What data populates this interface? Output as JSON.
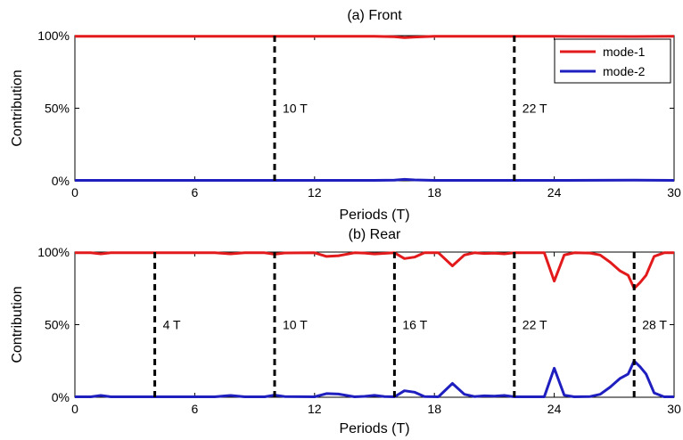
{
  "chart_data": [
    {
      "type": "line",
      "title": "(a) Front",
      "xlabel": "Periods (T)",
      "ylabel": "Contribution",
      "xlim": [
        0,
        30
      ],
      "ylim": [
        0,
        100
      ],
      "xticks": [
        0,
        6,
        12,
        18,
        24,
        30
      ],
      "yticks": [
        0,
        50,
        100
      ],
      "ytick_labels": [
        "0%",
        "50%",
        "100%"
      ],
      "grid": false,
      "legend": {
        "position": "top-right",
        "entries": [
          "mode-1",
          "mode-2"
        ]
      },
      "annotations": [
        {
          "x": 10,
          "label": "10 T"
        },
        {
          "x": 22,
          "label": "22 T"
        }
      ],
      "series": [
        {
          "name": "mode-1",
          "color": "#e31a1c",
          "points": [
            [
              0,
              99.5
            ],
            [
              5,
              99.5
            ],
            [
              10,
              99.5
            ],
            [
              15,
              99.5
            ],
            [
              16,
              99.2
            ],
            [
              16.5,
              98.6
            ],
            [
              17,
              99.0
            ],
            [
              18,
              99.5
            ],
            [
              24,
              99.5
            ],
            [
              28,
              99.4
            ],
            [
              30,
              99.5
            ]
          ]
        },
        {
          "name": "mode-2",
          "color": "#1f1fbf",
          "points": [
            [
              0,
              0.3
            ],
            [
              5,
              0.3
            ],
            [
              10,
              0.3
            ],
            [
              15,
              0.3
            ],
            [
              16,
              0.5
            ],
            [
              16.5,
              1.0
            ],
            [
              17,
              0.6
            ],
            [
              18,
              0.3
            ],
            [
              24,
              0.3
            ],
            [
              28,
              0.5
            ],
            [
              30,
              0.3
            ]
          ]
        }
      ]
    },
    {
      "type": "line",
      "title": "(b) Rear",
      "xlabel": "Periods (T)",
      "ylabel": "Contribution",
      "xlim": [
        0,
        30
      ],
      "ylim": [
        0,
        100
      ],
      "xticks": [
        0,
        6,
        12,
        18,
        24,
        30
      ],
      "yticks": [
        0,
        50,
        100
      ],
      "ytick_labels": [
        "0%",
        "50%",
        "100%"
      ],
      "grid": false,
      "annotations": [
        {
          "x": 4,
          "label": "4 T"
        },
        {
          "x": 10,
          "label": "10 T"
        },
        {
          "x": 16,
          "label": "16 T"
        },
        {
          "x": 22,
          "label": "22 T"
        },
        {
          "x": 28,
          "label": "28 T"
        }
      ],
      "series": [
        {
          "name": "mode-1",
          "color": "#e31a1c",
          "points": [
            [
              0,
              99.5
            ],
            [
              0.8,
              99.5
            ],
            [
              1.3,
              98.8
            ],
            [
              1.8,
              99.5
            ],
            [
              4,
              99.5
            ],
            [
              7,
              99.5
            ],
            [
              7.8,
              98.8
            ],
            [
              8.5,
              99.5
            ],
            [
              9.5,
              99.5
            ],
            [
              10,
              98.5
            ],
            [
              10.5,
              99.4
            ],
            [
              12,
              99.5
            ],
            [
              12.6,
              97
            ],
            [
              13.2,
              97.5
            ],
            [
              14,
              99.5
            ],
            [
              14.5,
              99.3
            ],
            [
              15,
              98.7
            ],
            [
              16,
              99.5
            ],
            [
              16.5,
              95.5
            ],
            [
              17,
              96.5
            ],
            [
              17.5,
              99.5
            ],
            [
              18.2,
              99.5
            ],
            [
              18.9,
              90.5
            ],
            [
              19.5,
              98
            ],
            [
              20,
              99.5
            ],
            [
              20.5,
              99
            ],
            [
              21,
              99.2
            ],
            [
              21.5,
              98.8
            ],
            [
              22,
              99.5
            ],
            [
              23.5,
              99.5
            ],
            [
              24,
              80
            ],
            [
              24.5,
              98
            ],
            [
              25,
              99.5
            ],
            [
              25.8,
              99.3
            ],
            [
              26.3,
              98
            ],
            [
              26.8,
              93
            ],
            [
              27.3,
              87
            ],
            [
              27.7,
              84
            ],
            [
              28,
              75
            ],
            [
              28.3,
              79
            ],
            [
              28.6,
              84
            ],
            [
              29,
              97
            ],
            [
              29.5,
              99.5
            ],
            [
              30,
              99.5
            ]
          ]
        },
        {
          "name": "mode-2",
          "color": "#1f1fbf",
          "points": [
            [
              0,
              0.3
            ],
            [
              0.8,
              0.3
            ],
            [
              1.3,
              1.2
            ],
            [
              1.8,
              0.3
            ],
            [
              4,
              0.3
            ],
            [
              7,
              0.3
            ],
            [
              7.8,
              1.2
            ],
            [
              8.5,
              0.3
            ],
            [
              9.5,
              0.3
            ],
            [
              10,
              1.5
            ],
            [
              10.5,
              0.5
            ],
            [
              12,
              0.3
            ],
            [
              12.6,
              2.5
            ],
            [
              13.2,
              2.2
            ],
            [
              14,
              0.3
            ],
            [
              14.5,
              0.6
            ],
            [
              15,
              1.3
            ],
            [
              15.5,
              0.5
            ],
            [
              16,
              0.3
            ],
            [
              16.5,
              4.5
            ],
            [
              17,
              3.5
            ],
            [
              17.5,
              0.4
            ],
            [
              18.2,
              0.3
            ],
            [
              18.9,
              9.5
            ],
            [
              19.5,
              2
            ],
            [
              20,
              0.5
            ],
            [
              20.5,
              1
            ],
            [
              21,
              0.8
            ],
            [
              21.5,
              1.2
            ],
            [
              22,
              0.3
            ],
            [
              23.5,
              0.3
            ],
            [
              24,
              20
            ],
            [
              24.5,
              1.5
            ],
            [
              25,
              0.3
            ],
            [
              25.8,
              0.5
            ],
            [
              26.3,
              2
            ],
            [
              26.8,
              7
            ],
            [
              27.3,
              13
            ],
            [
              27.7,
              16
            ],
            [
              28,
              25
            ],
            [
              28.3,
              21
            ],
            [
              28.6,
              16
            ],
            [
              29,
              3
            ],
            [
              29.5,
              0.3
            ],
            [
              30,
              0.3
            ]
          ]
        }
      ]
    }
  ]
}
